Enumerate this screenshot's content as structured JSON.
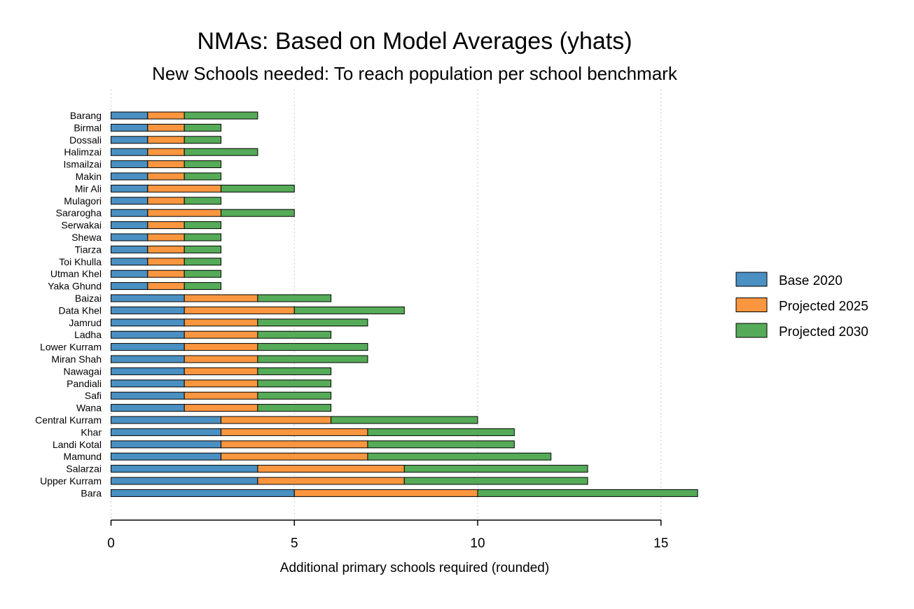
{
  "colors": {
    "base": "#4a90c2",
    "p2025": "#f9963f",
    "p2030": "#55ab58",
    "bar_edge": "#000000",
    "grid": "#b8b8b8"
  },
  "chart_data": {
    "type": "bar",
    "orientation": "horizontal",
    "stacked": true,
    "title": "NMAs: Based on Model Averages (yhats)",
    "subtitle": "New Schools needed: To reach population per school benchmark",
    "xlabel": "Additional primary schools required (rounded)",
    "ylabel": "",
    "xlim": [
      0,
      17
    ],
    "x_ticks": [
      0,
      5,
      10,
      15
    ],
    "x_tick_labels": [
      "0",
      "5",
      "10",
      "15"
    ],
    "grid": true,
    "legend_position": "right",
    "categories": [
      "Barang",
      "Birmal",
      "Dossali",
      "Halimzai",
      "Ismailzai",
      "Makin",
      "Mir Ali",
      "Mulagori",
      "Sararogha",
      "Serwakai",
      "Shewa",
      "Tiarza",
      "Toi Khulla",
      "Utman Khel",
      "Yaka Ghund",
      "Baizai",
      "Data Khel",
      "Jamrud",
      "Ladha",
      "Lower Kurram",
      "Miran Shah",
      "Nawagai",
      "Pandiali",
      "Safi",
      "Wana",
      "Central Kurram",
      "Khar",
      "Landi Kotal",
      "Mamund",
      "Salarzai",
      "Upper Kurram",
      "Bara"
    ],
    "series": [
      {
        "name": "Base 2020",
        "color_key": "base",
        "values": [
          1,
          1,
          1,
          1,
          1,
          1,
          1,
          1,
          1,
          1,
          1,
          1,
          1,
          1,
          1,
          2,
          2,
          2,
          2,
          2,
          2,
          2,
          2,
          2,
          2,
          3,
          3,
          3,
          3,
          4,
          4,
          5
        ]
      },
      {
        "name": "Projected 2025",
        "color_key": "p2025",
        "values": [
          1,
          1,
          1,
          1,
          1,
          1,
          2,
          1,
          2,
          1,
          1,
          1,
          1,
          1,
          1,
          2,
          3,
          2,
          2,
          2,
          2,
          2,
          2,
          2,
          2,
          3,
          4,
          4,
          4,
          4,
          4,
          5
        ]
      },
      {
        "name": "Projected 2030",
        "color_key": "p2030",
        "values": [
          2,
          1,
          1,
          2,
          1,
          1,
          2,
          1,
          2,
          1,
          1,
          1,
          1,
          1,
          1,
          2,
          3,
          3,
          2,
          3,
          3,
          2,
          2,
          2,
          2,
          4,
          4,
          4,
          5,
          5,
          5,
          6
        ]
      }
    ]
  }
}
